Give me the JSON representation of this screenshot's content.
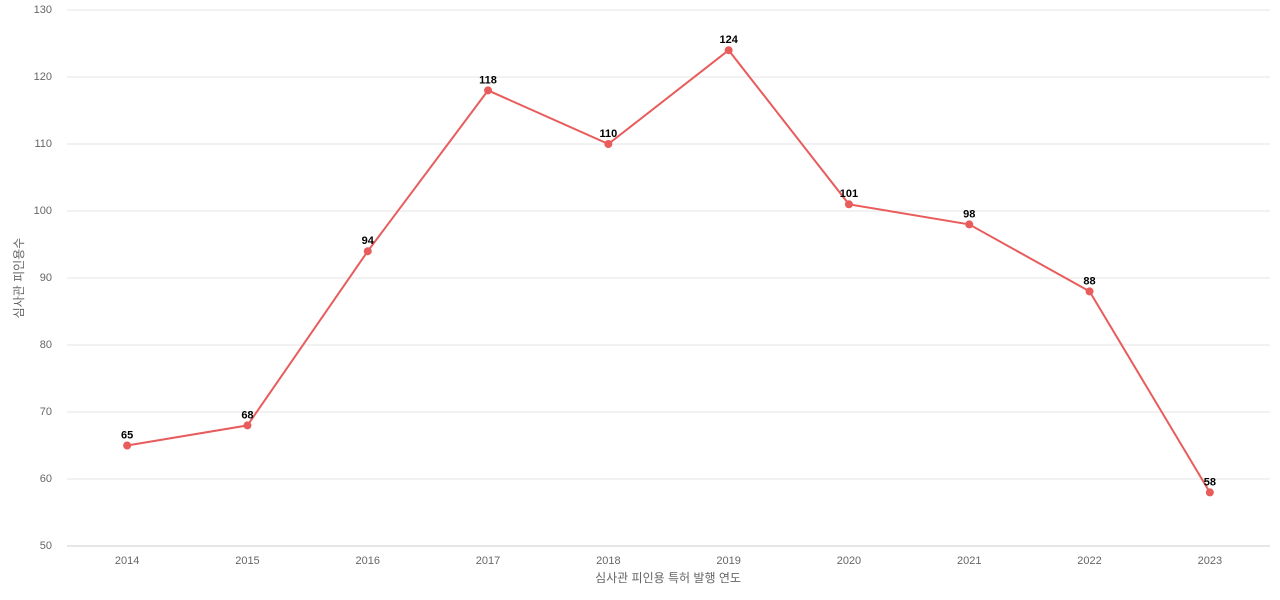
{
  "chart_data": {
    "type": "line",
    "categories": [
      "2014",
      "2015",
      "2016",
      "2017",
      "2018",
      "2019",
      "2020",
      "2021",
      "2022",
      "2023"
    ],
    "series": [
      {
        "name": "심사관 피인용수",
        "color": "#e85c5c",
        "values": [
          65,
          68,
          94,
          118,
          110,
          124,
          101,
          98,
          88,
          58
        ]
      }
    ],
    "x_label": "심사관 피인용 특허 발행 연도",
    "y_label": "심사관 피인용수",
    "ylim": [
      50,
      130
    ],
    "yticks": [
      50,
      60,
      70,
      80,
      90,
      100,
      110,
      120,
      130
    ],
    "grid": true
  }
}
